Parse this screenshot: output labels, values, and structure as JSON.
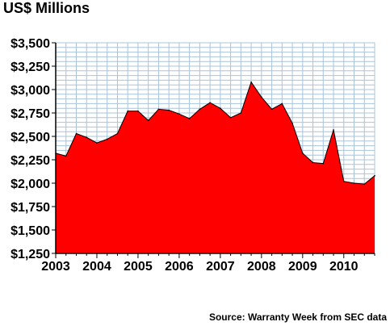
{
  "chart_data": {
    "type": "area",
    "title": "US$ Millions",
    "source": "Source: Warranty Week from SEC data",
    "xlabel": "",
    "ylabel": "",
    "ylim": [
      1250,
      3500
    ],
    "yticks": [
      1250,
      1500,
      1750,
      2000,
      2250,
      2500,
      2750,
      3000,
      3250,
      3500
    ],
    "ytick_labels": [
      "$1,250",
      "$1,500",
      "$1,750",
      "$2,000",
      "$2,250",
      "$2,500",
      "$2,750",
      "$3,000",
      "$3,250",
      "$3,500"
    ],
    "xlim": [
      2003,
      2010.75
    ],
    "xticks": [
      2003,
      2004,
      2005,
      2006,
      2007,
      2008,
      2009,
      2010
    ],
    "xtick_labels": [
      "2003",
      "2004",
      "2005",
      "2006",
      "2007",
      "2008",
      "2009",
      "2010"
    ],
    "grid": true,
    "fill_color": "#ff0000",
    "grid_color": "#a9c4dc",
    "x": [
      2003.0,
      2003.25,
      2003.5,
      2003.75,
      2004.0,
      2004.25,
      2004.5,
      2004.75,
      2005.0,
      2005.25,
      2005.5,
      2005.75,
      2006.0,
      2006.25,
      2006.5,
      2006.75,
      2007.0,
      2007.25,
      2007.5,
      2007.75,
      2008.0,
      2008.25,
      2008.5,
      2008.75,
      2009.0,
      2009.25,
      2009.5,
      2009.75,
      2010.0,
      2010.25,
      2010.5,
      2010.75
    ],
    "values": [
      2320,
      2290,
      2530,
      2490,
      2430,
      2470,
      2530,
      2770,
      2770,
      2670,
      2790,
      2780,
      2740,
      2690,
      2790,
      2860,
      2800,
      2700,
      2750,
      3080,
      2920,
      2790,
      2850,
      2640,
      2320,
      2220,
      2210,
      2570,
      2020,
      2000,
      1990,
      2080
    ]
  }
}
